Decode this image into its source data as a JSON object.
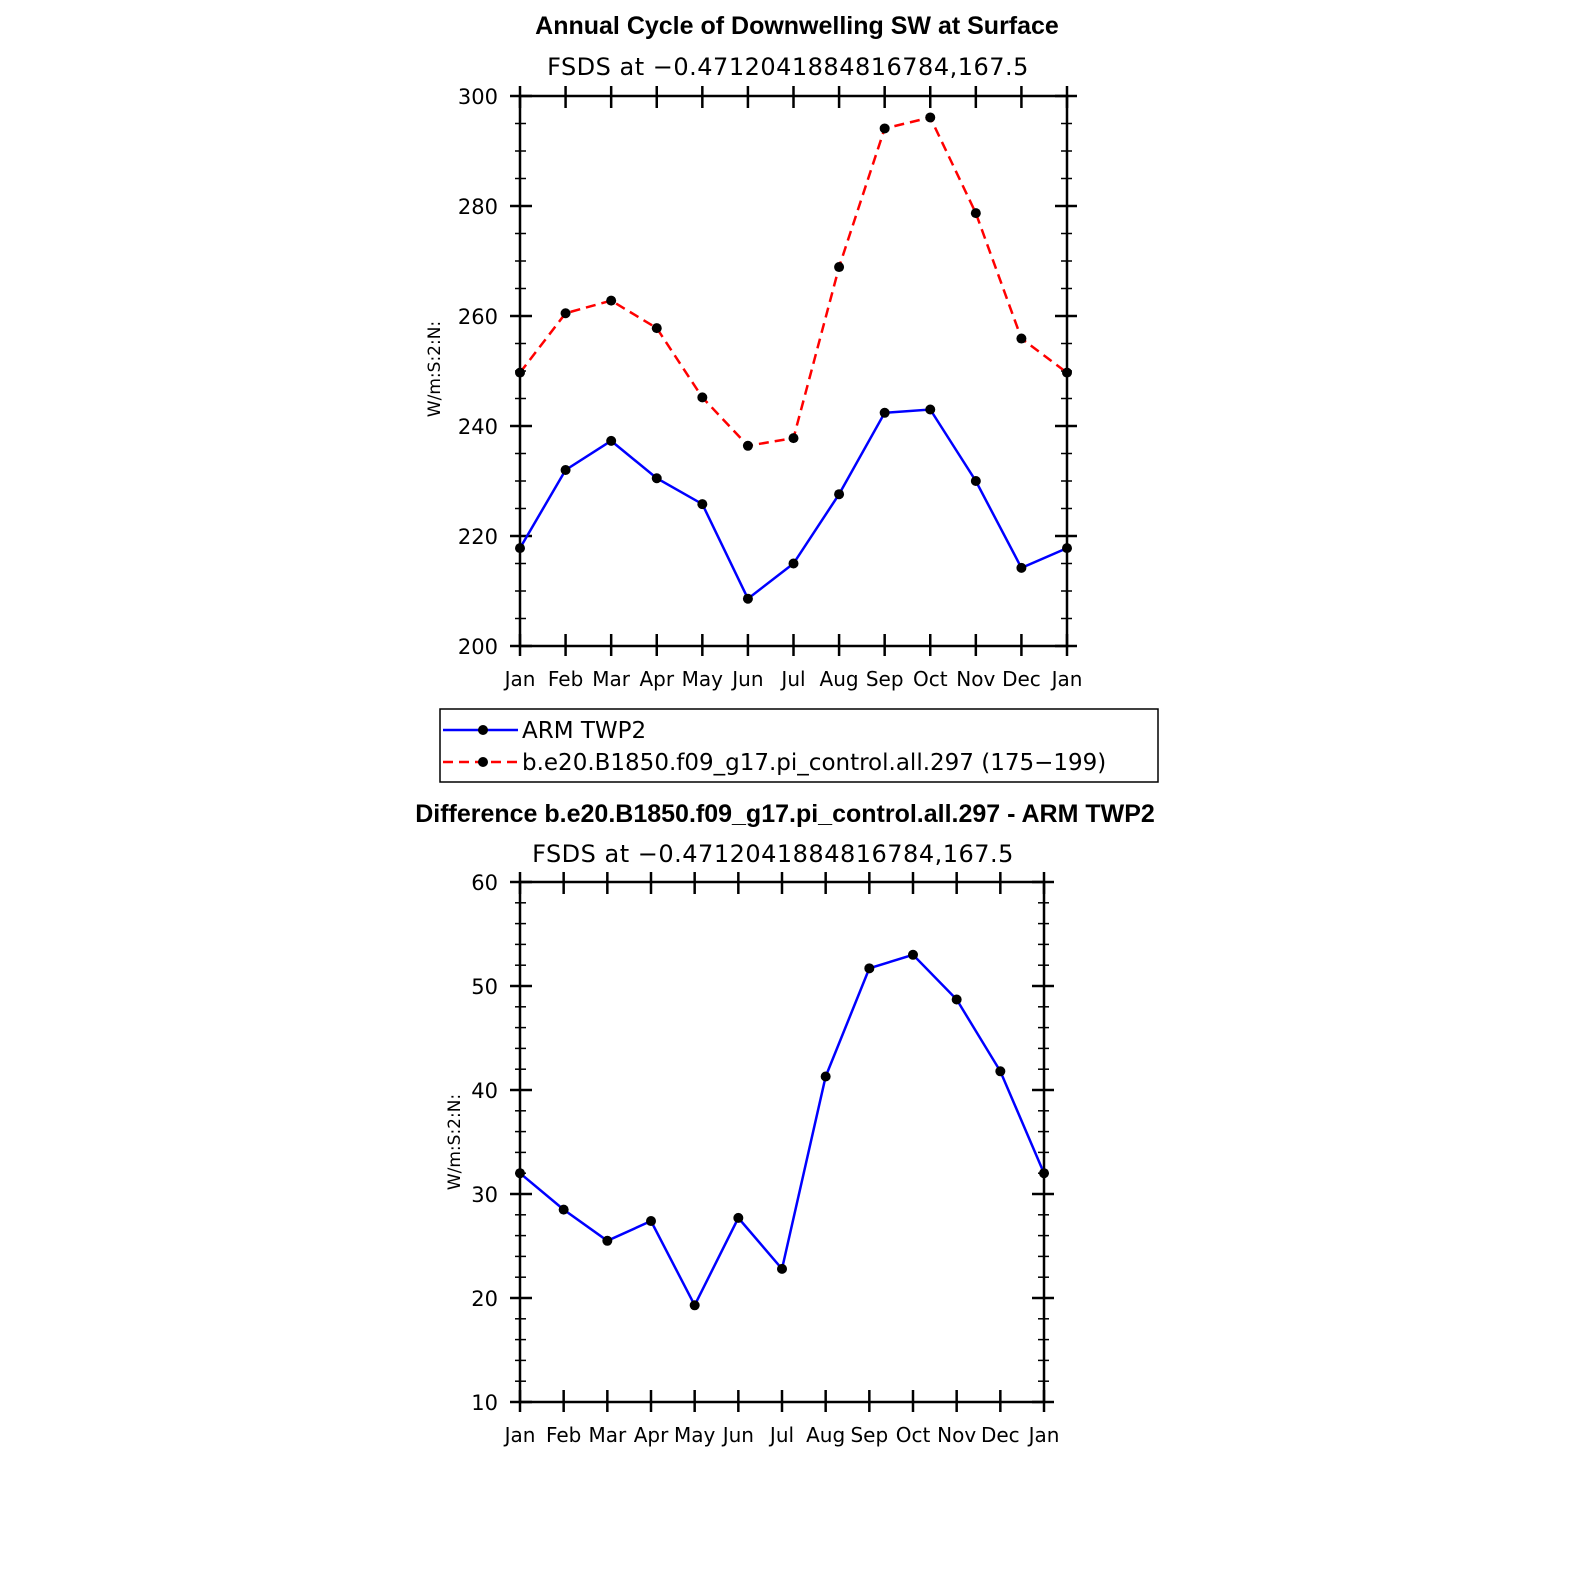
{
  "chart_data": [
    {
      "type": "line",
      "title": "Annual Cycle of Downwelling SW at Surface",
      "subtitle": "FSDS at −0.4712041884816784,167.5",
      "xlabel": "",
      "ylabel": "W/m:S:2:N:",
      "categories": [
        "Jan",
        "Feb",
        "Mar",
        "Apr",
        "May",
        "Jun",
        "Jul",
        "Aug",
        "Sep",
        "Oct",
        "Nov",
        "Dec",
        "Jan"
      ],
      "ylim": [
        200,
        300
      ],
      "yticks": [
        "200",
        "220",
        "240",
        "260",
        "280",
        "300"
      ],
      "series": [
        {
          "name": "ARM TWP2",
          "color": "#0000ff",
          "dash": "solid",
          "values": [
            217.8,
            232.0,
            237.3,
            230.5,
            225.8,
            208.6,
            215.0,
            227.6,
            242.4,
            243.0,
            230.0,
            214.2,
            217.8
          ]
        },
        {
          "name": "b.e20.B1850.f09_g17.pi_control.all.297 (175−199)",
          "color": "#ff0000",
          "dash": "dashed",
          "values": [
            249.7,
            260.5,
            262.8,
            257.8,
            245.2,
            236.4,
            237.8,
            268.9,
            294.1,
            296.1,
            278.7,
            255.9,
            249.7
          ]
        }
      ],
      "legend": "below"
    },
    {
      "type": "line",
      "title": "Difference b.e20.B1850.f09_g17.pi_control.all.297 - ARM TWP2",
      "subtitle": "FSDS at −0.4712041884816784,167.5",
      "xlabel": "",
      "ylabel": "W/m:S:2:N:",
      "categories": [
        "Jan",
        "Feb",
        "Mar",
        "Apr",
        "May",
        "Jun",
        "Jul",
        "Aug",
        "Sep",
        "Oct",
        "Nov",
        "Dec",
        "Jan"
      ],
      "ylim": [
        10,
        60
      ],
      "yticks": [
        "10",
        "20",
        "30",
        "40",
        "50",
        "60"
      ],
      "series": [
        {
          "name": "Difference",
          "color": "#0000ff",
          "dash": "solid",
          "values": [
            32.0,
            28.5,
            25.5,
            27.4,
            19.3,
            27.7,
            22.8,
            41.3,
            51.7,
            53.0,
            48.7,
            41.8,
            32.0
          ]
        }
      ]
    }
  ]
}
